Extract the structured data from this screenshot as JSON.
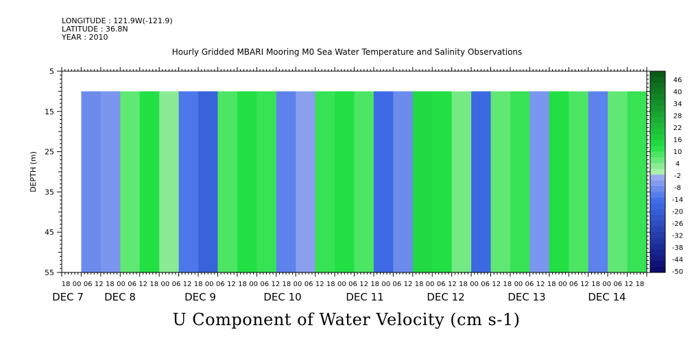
{
  "header": {
    "longitude": "LONGITUDE : 121.9W(-121.9)",
    "latitude": "LATITUDE : 36.8N",
    "year": "YEAR : 2010"
  },
  "chart_data": {
    "type": "heatmap",
    "title": "Hourly Gridded MBARI Mooring M0 Sea Water Temperature and Salinity Observations",
    "xlabel": "U Component of Water Velocity (cm s-1)",
    "ylabel": "DEPTH (m)",
    "ylim": [
      55,
      5
    ],
    "y_ticks": [
      5,
      15,
      25,
      35,
      45,
      55
    ],
    "x_hour_ticks": [
      "18",
      "00",
      "06",
      "12",
      "18",
      "00",
      "06",
      "12",
      "18",
      "00",
      "06",
      "12",
      "18",
      "00",
      "06",
      "12",
      "18",
      "00",
      "06",
      "12",
      "18",
      "00",
      "06",
      "12",
      "18",
      "00",
      "06",
      "12",
      "18",
      "00",
      "06",
      "12",
      "18",
      "00",
      "06",
      "12",
      "18",
      "00",
      "06",
      "12",
      "18",
      "00",
      "06",
      "12",
      "18",
      "00",
      "06",
      "12",
      "18",
      "00",
      "06",
      "12",
      "18"
    ],
    "x_day_labels": [
      "DEC 7",
      "DEC 8",
      "DEC 9",
      "DEC 10",
      "DEC 11",
      "DEC 12",
      "DEC 13",
      "DEC 14"
    ],
    "x_range_hours": [
      -6,
      174
    ],
    "data_depth_range": [
      10,
      55
    ],
    "colorbar": {
      "ticks": [
        46,
        40,
        34,
        28,
        22,
        16,
        10,
        4,
        -2,
        -8,
        -14,
        -20,
        -26,
        -32,
        -38,
        -44,
        -50
      ],
      "levels": [
        52,
        49,
        46,
        43,
        40,
        37,
        34,
        31,
        28,
        25,
        22,
        19,
        16,
        13,
        10,
        7,
        4,
        1,
        -2,
        -5,
        -8,
        -11,
        -14,
        -17,
        -20,
        -23,
        -26,
        -29,
        -32,
        -35,
        -38,
        -41,
        -44,
        -47,
        -50
      ]
    },
    "profile_hours": [
      0,
      6,
      12,
      18,
      24,
      30,
      36,
      42,
      48,
      54,
      60,
      66,
      72,
      78,
      84,
      90,
      96,
      102,
      108,
      114,
      120,
      126,
      132,
      138,
      144,
      150,
      156,
      162,
      168
    ],
    "profile_values": [
      -8,
      -6,
      8,
      14,
      4,
      -12,
      -18,
      10,
      14,
      12,
      -10,
      -4,
      12,
      14,
      10,
      -15,
      -8,
      16,
      14,
      6,
      -16,
      8,
      12,
      -6,
      14,
      10,
      -10,
      8,
      12
    ]
  },
  "colors": {
    "neg_low": "#0b0b6e",
    "neg_mid": "#3f6ee8",
    "neg_light": "#a8b4f2",
    "pos_light": "#b4f0b4",
    "pos_mid": "#22e044",
    "pos_high": "#0b5a18"
  }
}
